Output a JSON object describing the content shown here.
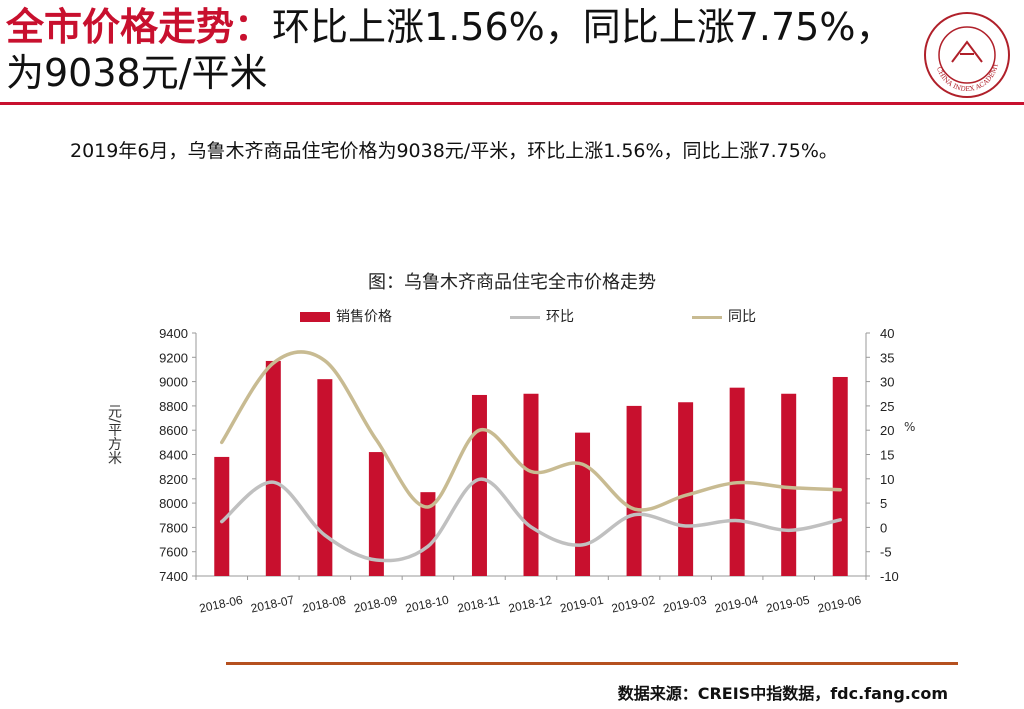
{
  "header": {
    "title_highlight": "全市价格走势：",
    "title_rest": "环比上涨1.56%，同比上涨7.75%，为9038元/平米",
    "logo_text": "CHINA INDEX ACADEMY"
  },
  "summary": "2019年6月，乌鲁木齐商品住宅价格为9038元/平米，环比上涨1.56%，同比上涨7.75%。",
  "chart_data": {
    "type": "bar",
    "title": "图：乌鲁木齐商品住宅全市价格走势",
    "categories": [
      "2018-06",
      "2018-07",
      "2018-08",
      "2018-09",
      "2018-10",
      "2018-11",
      "2018-12",
      "2019-01",
      "2019-02",
      "2019-03",
      "2019-04",
      "2019-05",
      "2019-06"
    ],
    "series": [
      {
        "name": "销售价格",
        "kind": "bar",
        "axis": "left",
        "color": "#c8102e",
        "values": [
          8380,
          9170,
          9020,
          8420,
          8090,
          8890,
          8900,
          8580,
          8800,
          8830,
          8950,
          8900,
          9038
        ]
      },
      {
        "name": "环比",
        "kind": "line",
        "axis": "right",
        "color": "#c0c0c0",
        "values": [
          1.2,
          9.3,
          -1.6,
          -6.7,
          -3.9,
          9.9,
          0.1,
          -3.6,
          2.6,
          0.3,
          1.4,
          -0.6,
          1.56
        ]
      },
      {
        "name": "同比",
        "kind": "line",
        "axis": "right",
        "color": "#c8bb92",
        "values": [
          17.5,
          33.8,
          34.3,
          18.0,
          4.2,
          20.0,
          11.5,
          13.0,
          3.8,
          6.6,
          9.2,
          8.2,
          7.75
        ]
      }
    ],
    "ylabel_left": "元/平方米",
    "ylabel_right": "%",
    "ylim_left": [
      7400,
      9400
    ],
    "ylim_right": [
      -10,
      40
    ],
    "yticks_left": [
      7400,
      7600,
      7800,
      8000,
      8200,
      8400,
      8600,
      8800,
      9000,
      9200,
      9400
    ],
    "yticks_right": [
      -10,
      -5,
      0,
      5,
      10,
      15,
      20,
      25,
      30,
      35,
      40
    ],
    "legend_position": "top",
    "grid": false
  },
  "footer": {
    "source": "数据来源：CREIS中指数据，fdc.fang.com"
  }
}
